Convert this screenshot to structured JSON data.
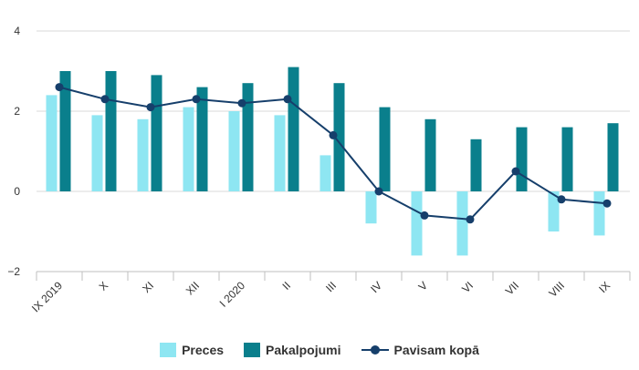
{
  "chart_data": {
    "type": "bar",
    "categories": [
      "IX 2019",
      "X",
      "XI",
      "XII",
      "I 2020",
      "II",
      "III",
      "IV",
      "V",
      "VI",
      "VII",
      "VIII",
      "IX"
    ],
    "series": [
      {
        "name": "Preces",
        "type": "bar",
        "color": "#8ee6f2",
        "values": [
          2.4,
          1.9,
          1.8,
          2.1,
          2.0,
          1.9,
          0.9,
          -0.8,
          -1.6,
          -1.6,
          0.0,
          -1.0,
          -1.1
        ]
      },
      {
        "name": "Pakalpojumi",
        "type": "bar",
        "color": "#0a7f8c",
        "values": [
          3.0,
          3.0,
          2.9,
          2.6,
          2.7,
          3.1,
          2.7,
          2.1,
          1.8,
          1.3,
          1.6,
          1.6,
          1.7
        ]
      },
      {
        "name": "Pavisam kopā",
        "type": "line",
        "color": "#163f6b",
        "values": [
          2.6,
          2.3,
          2.1,
          2.3,
          2.2,
          2.3,
          1.4,
          0.0,
          -0.6,
          -0.7,
          0.5,
          -0.2,
          -0.3
        ]
      }
    ],
    "y_ticks": [
      "4",
      "2",
      "0",
      "−2"
    ],
    "ylim": [
      -2,
      4
    ],
    "grid": true,
    "legend_position": "bottom"
  }
}
